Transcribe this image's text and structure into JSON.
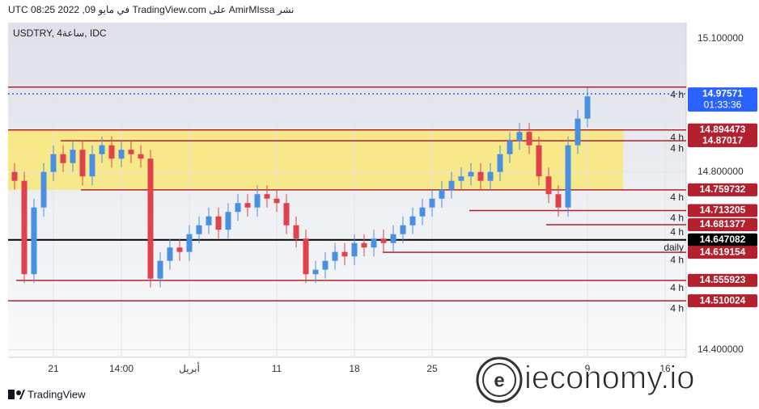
{
  "header": "نشر AmirMIssa على TradingView.com في مايو 09, 2022 08:25 UTC",
  "footer": "TradingView",
  "chart_data": {
    "type": "candlestick",
    "symbol": "USDTRY, 4ساعة, IDC",
    "watermark": "ieconomy.io",
    "up_color": "#4a90e2",
    "down_color": "#e0424d",
    "grid": true,
    "categories": [
      null,
      null,
      null,
      null,
      "21",
      null,
      null,
      null,
      null,
      null,
      null,
      "14:00",
      null,
      null,
      null,
      null,
      null,
      null,
      "أبريل",
      null,
      null,
      null,
      null,
      null,
      null,
      null,
      null,
      "11",
      null,
      null,
      null,
      null,
      null,
      null,
      null,
      "18",
      null,
      null,
      null,
      null,
      null,
      null,
      null,
      "25",
      null,
      null,
      null,
      null,
      null,
      null,
      null,
      null,
      null,
      null,
      null,
      null,
      null,
      null,
      null,
      "9",
      null,
      null,
      null,
      null,
      null,
      null,
      null,
      "16",
      null
    ],
    "open": [
      14.8,
      14.78,
      14.57,
      14.72,
      14.8,
      14.84,
      14.82,
      14.85,
      14.79,
      14.84,
      14.86,
      14.83,
      14.85,
      14.84,
      14.83,
      14.56,
      14.6,
      14.63,
      14.62,
      14.66,
      14.68,
      14.7,
      14.67,
      14.71,
      14.73,
      14.72,
      14.75,
      14.74,
      14.73,
      14.68,
      14.65,
      14.57,
      14.58,
      14.6,
      14.62,
      14.61,
      14.64,
      14.63,
      14.65,
      14.64,
      14.66,
      14.68,
      14.7,
      14.72,
      14.74,
      14.76,
      14.78,
      14.79,
      14.8,
      14.78,
      14.8,
      14.84,
      14.87,
      14.89,
      14.86,
      14.79,
      14.75,
      14.72,
      14.86,
      14.92,
      null,
      null,
      null,
      null,
      null,
      null,
      null,
      null,
      null
    ],
    "high": [
      14.82,
      14.8,
      14.74,
      14.82,
      14.86,
      14.86,
      14.87,
      14.87,
      14.86,
      14.88,
      14.88,
      14.87,
      14.87,
      14.86,
      14.85,
      14.62,
      14.65,
      14.65,
      14.68,
      14.7,
      14.72,
      14.72,
      14.73,
      14.75,
      14.75,
      14.77,
      14.77,
      14.76,
      14.75,
      14.7,
      14.67,
      14.6,
      14.62,
      14.64,
      14.64,
      14.66,
      14.66,
      14.67,
      14.67,
      14.68,
      14.7,
      14.72,
      14.74,
      14.76,
      14.78,
      14.8,
      14.81,
      14.82,
      14.82,
      14.82,
      14.86,
      14.89,
      14.91,
      14.91,
      14.88,
      14.81,
      14.77,
      14.88,
      14.94,
      14.99,
      null,
      null,
      null,
      null,
      null,
      null,
      null,
      null,
      null
    ],
    "low": [
      14.76,
      14.55,
      14.55,
      14.7,
      14.78,
      14.8,
      14.8,
      14.77,
      14.77,
      14.82,
      14.81,
      14.81,
      14.82,
      14.81,
      14.54,
      14.54,
      14.58,
      14.6,
      14.6,
      14.64,
      14.66,
      14.65,
      14.65,
      14.69,
      14.7,
      14.7,
      14.72,
      14.71,
      14.66,
      14.63,
      14.55,
      14.55,
      14.56,
      14.58,
      14.59,
      14.59,
      14.61,
      14.61,
      14.62,
      14.62,
      14.64,
      14.66,
      14.68,
      14.7,
      14.72,
      14.74,
      14.76,
      14.77,
      14.76,
      14.76,
      14.78,
      14.82,
      14.85,
      14.84,
      14.77,
      14.73,
      14.7,
      14.7,
      14.84,
      14.9,
      null,
      null,
      null,
      null,
      null,
      null,
      null,
      null,
      null
    ],
    "close": [
      14.78,
      14.57,
      14.72,
      14.8,
      14.84,
      14.82,
      14.85,
      14.79,
      14.84,
      14.86,
      14.83,
      14.85,
      14.84,
      14.83,
      14.56,
      14.6,
      14.63,
      14.62,
      14.66,
      14.68,
      14.7,
      14.67,
      14.71,
      14.73,
      14.72,
      14.75,
      14.74,
      14.73,
      14.68,
      14.65,
      14.57,
      14.58,
      14.6,
      14.62,
      14.61,
      14.64,
      14.63,
      14.65,
      14.64,
      14.66,
      14.68,
      14.7,
      14.72,
      14.74,
      14.76,
      14.78,
      14.79,
      14.8,
      14.78,
      14.8,
      14.84,
      14.87,
      14.89,
      14.86,
      14.79,
      14.75,
      14.72,
      14.86,
      14.92,
      14.97,
      null,
      null,
      null,
      null,
      null,
      null,
      null,
      null,
      null
    ],
    "ylim": [
      14.383,
      15.136
    ],
    "yticks": [
      {
        "value": 14.4,
        "label": "14.400000"
      },
      {
        "value": 14.8,
        "label": "14.800000"
      },
      {
        "value": 15.1,
        "label": "15.100000"
      }
    ],
    "current": {
      "value": 14.97571,
      "countdown": "01:33:36",
      "color": "#2962ff"
    },
    "zone_color": "#f7e98a",
    "levels": [
      {
        "value": 14.991,
        "tag": "4 h",
        "color": "#b3202e"
      },
      {
        "value": 14.894473,
        "tag": "4 h",
        "color": "#b3202e"
      },
      {
        "value": 14.87017,
        "tag": "4 h",
        "color": "#b3202e"
      },
      {
        "value": 14.759732,
        "tag": "4 h",
        "color": "#b3202e"
      },
      {
        "value": 14.713205,
        "tag": "4 h",
        "color": "#b3202e"
      },
      {
        "value": 14.681377,
        "tag": "4 h",
        "color": "#b3202e"
      },
      {
        "value": 14.647082,
        "tag": "daily",
        "color": "#000000"
      },
      {
        "value": 14.619154,
        "tag": "4 h",
        "color": "#b3202e"
      },
      {
        "value": 14.555923,
        "tag": "4 h",
        "color": "#b3202e"
      },
      {
        "value": 14.510024,
        "tag": "4 h",
        "color": "#b3202e"
      }
    ]
  }
}
